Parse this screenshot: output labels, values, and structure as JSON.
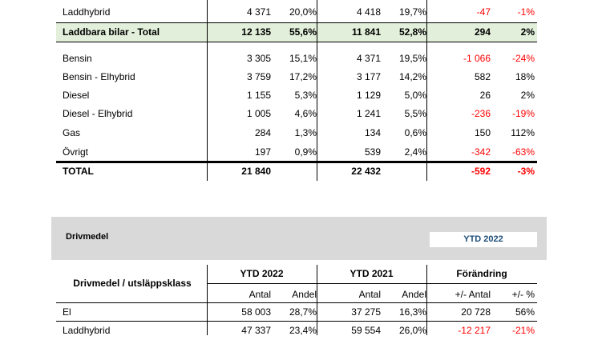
{
  "table1": {
    "rows": [
      {
        "label": "Laddhybrid",
        "n1": "4 371",
        "p1": "20,0%",
        "n2": "4 418",
        "p2": "19,7%",
        "d": "-47",
        "dp": "-1%",
        "neg": true
      },
      {
        "label": "Laddbara bilar - Total",
        "n1": "12 135",
        "p1": "55,6%",
        "n2": "11 841",
        "p2": "52,8%",
        "d": "294",
        "dp": "2%",
        "neg": false
      },
      {
        "label": "Bensin",
        "n1": "3 305",
        "p1": "15,1%",
        "n2": "4 371",
        "p2": "19,5%",
        "d": "-1 066",
        "dp": "-24%",
        "neg": true
      },
      {
        "label": "Bensin - Elhybrid",
        "n1": "3 759",
        "p1": "17,2%",
        "n2": "3 177",
        "p2": "14,2%",
        "d": "582",
        "dp": "18%",
        "neg": false
      },
      {
        "label": "Diesel",
        "n1": "1 155",
        "p1": "5,3%",
        "n2": "1 129",
        "p2": "5,0%",
        "d": "26",
        "dp": "2%",
        "neg": false
      },
      {
        "label": "Diesel - Elhybrid",
        "n1": "1 005",
        "p1": "4,6%",
        "n2": "1 241",
        "p2": "5,5%",
        "d": "-236",
        "dp": "-19%",
        "neg": true
      },
      {
        "label": "Gas",
        "n1": "284",
        "p1": "1,3%",
        "n2": "134",
        "p2": "0,6%",
        "d": "150",
        "dp": "112%",
        "neg": false
      },
      {
        "label": "Övrigt",
        "n1": "197",
        "p1": "0,9%",
        "n2": "539",
        "p2": "2,4%",
        "d": "-342",
        "dp": "-63%",
        "neg": true
      },
      {
        "label": "TOTAL",
        "n1": "21 840",
        "p1": "",
        "n2": "22 432",
        "p2": "",
        "d": "-592",
        "dp": "-3%",
        "neg": true
      }
    ]
  },
  "section2": {
    "title": "Drivmedel",
    "period_badge": "YTD 2022",
    "row_header": "Drivmedel / utsläppsklass",
    "groups": [
      "YTD 2022",
      "YTD 2021",
      "Förändring"
    ],
    "subheaders": [
      "Antal",
      "Andel",
      "Antal",
      "Andel",
      "+/- Antal",
      "+/- %"
    ],
    "rows": [
      {
        "label": "El",
        "n1": "58 003",
        "p1": "28,7%",
        "n2": "37 275",
        "p2": "16,3%",
        "d": "20 728",
        "dp": "56%",
        "neg": false
      },
      {
        "label": "Laddhybrid",
        "n1": "47 337",
        "p1": "23,4%",
        "n2": "59 554",
        "p2": "26,0%",
        "d": "-12 217",
        "dp": "-21%",
        "neg": true
      }
    ]
  }
}
